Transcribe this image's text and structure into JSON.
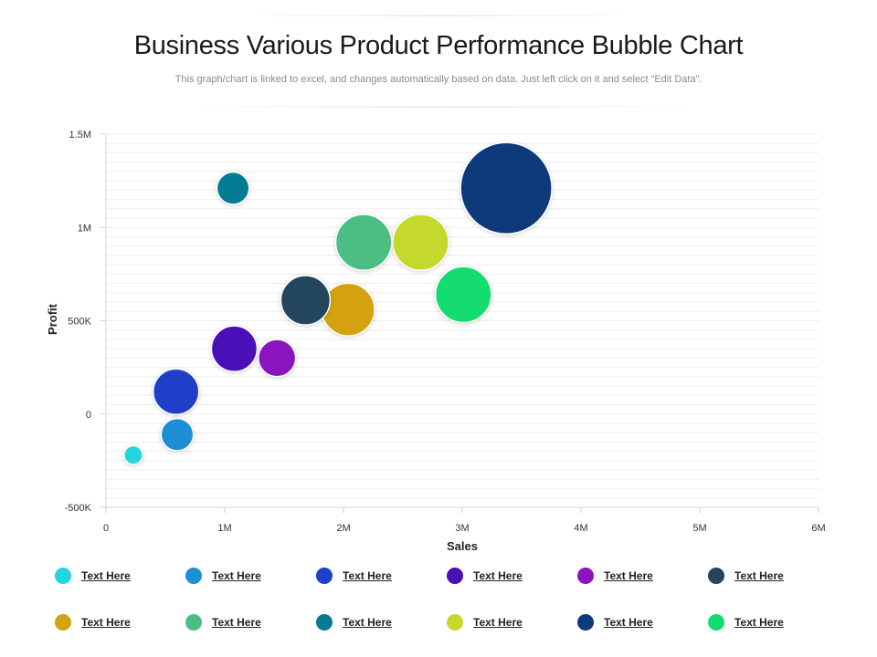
{
  "title": "Business Various Product Performance Bubble Chart",
  "subtitle": "This graph/chart is linked to excel, and changes automatically based on data. Just left click on it and select “Edit Data”.",
  "chart_data": {
    "type": "scatter",
    "subtype": "bubble",
    "xlabel": "Sales",
    "ylabel": "Profit",
    "xlim": [
      0,
      6000000
    ],
    "ylim": [
      -500000,
      1500000
    ],
    "x_ticks": [
      0,
      1000000,
      2000000,
      3000000,
      4000000,
      5000000,
      6000000
    ],
    "x_tick_labels": [
      "0",
      "1M",
      "2M",
      "3M",
      "4M",
      "5M",
      "6M"
    ],
    "y_ticks": [
      -500000,
      0,
      500000,
      1000000,
      1500000
    ],
    "y_tick_labels": [
      "-500K",
      "0",
      "500K",
      "1M",
      "1.5M"
    ],
    "grid": true,
    "legend_position": "bottom",
    "series": [
      {
        "name": "Text Here",
        "color": "#22d6dc",
        "x": 230000,
        "y": -220000,
        "size": 1
      },
      {
        "name": "Text Here",
        "color": "#1e8fd4",
        "x": 600000,
        "y": -110000,
        "size": 3
      },
      {
        "name": "Text Here",
        "color": "#1f3fc8",
        "x": 590000,
        "y": 120000,
        "size": 6
      },
      {
        "name": "Text Here",
        "color": "#4b0fb8",
        "x": 1080000,
        "y": 350000,
        "size": 6
      },
      {
        "name": "Text Here",
        "color": "#8a14c0",
        "x": 1440000,
        "y": 300000,
        "size": 4
      },
      {
        "name": "Text Here",
        "color": "#24465c",
        "x": 1680000,
        "y": 610000,
        "size": 7
      },
      {
        "name": "Text Here",
        "color": "#d3a20e",
        "x": 2040000,
        "y": 560000,
        "size": 8
      },
      {
        "name": "Text Here",
        "color": "#4cbd83",
        "x": 2170000,
        "y": 920000,
        "size": 9
      },
      {
        "name": "Text Here",
        "color": "#047c94",
        "x": 1070000,
        "y": 1210000,
        "size": 3
      },
      {
        "name": "Text Here",
        "color": "#c5d82c",
        "x": 2650000,
        "y": 920000,
        "size": 9
      },
      {
        "name": "Text Here",
        "color": "#0d3a7a",
        "x": 3370000,
        "y": 1210000,
        "size": 24
      },
      {
        "name": "Text Here",
        "color": "#15dc70",
        "x": 3010000,
        "y": 640000,
        "size": 9
      }
    ]
  }
}
